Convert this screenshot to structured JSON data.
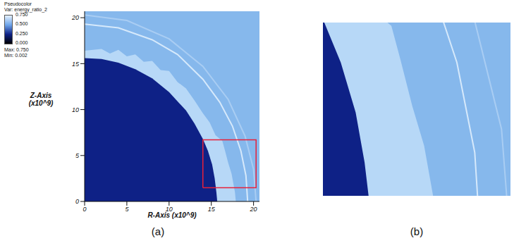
{
  "chart_data": [
    {
      "type": "area",
      "caption": "(a)",
      "x_label": "R-Axis (x10^9)",
      "y_label": "Z-Axis (x10^9)",
      "xlim": [
        0,
        20.7
      ],
      "ylim": [
        0,
        20.7
      ],
      "xticks": [
        0,
        5,
        10,
        15,
        20
      ],
      "yticks": [
        0,
        5,
        10,
        15,
        20
      ],
      "colorbar": {
        "title": "Pseudocolor",
        "variable": "Var: energy_ratio_2",
        "range": [
          0,
          0.75
        ],
        "ticks": [
          {
            "value": 0.75,
            "label": "0.750"
          },
          {
            "value": 0.5,
            "label": "0.500"
          },
          {
            "value": 0.25,
            "label": "0.250"
          },
          {
            "value": 0,
            "label": "0.000"
          }
        ],
        "colors": [
          "#e6f2ff",
          "#6fa6ea",
          "#0e2186",
          "#000000"
        ],
        "max_label": "Max: 0.750",
        "min_label": "Min: 0.002"
      },
      "series": [
        {
          "type": "area",
          "color": "#b7d8f7",
          "x": [
            0,
            2,
            3,
            4,
            5,
            6,
            7,
            8,
            9,
            10,
            11,
            12,
            13,
            14,
            14.8,
            15.5,
            16.3,
            16.6,
            17.0,
            17.4,
            17.6,
            17.8,
            17.9
          ],
          "values": [
            16.4,
            16.6,
            16.1,
            16.5,
            15.8,
            16.0,
            15.2,
            15.3,
            14.3,
            14.2,
            13.0,
            12.3,
            11.0,
            9.6,
            8.6,
            7.2,
            6.6,
            5.6,
            4.2,
            3.0,
            2.0,
            1.0,
            0
          ]
        },
        {
          "type": "area",
          "color": "#0e2186",
          "x": [
            0,
            2,
            4,
            6,
            8,
            10,
            12,
            13,
            14,
            14.6,
            15.1,
            15.4,
            15.6,
            15.7
          ],
          "values": [
            15.6,
            15.5,
            15.1,
            14.4,
            13.4,
            11.9,
            9.9,
            8.5,
            6.8,
            5.5,
            4.0,
            2.5,
            1.0,
            0
          ]
        },
        {
          "type": "line",
          "color": "#d6e9fb",
          "x": [
            0,
            4,
            8,
            11,
            14,
            16,
            17.5,
            18.5,
            19.1,
            19.3
          ],
          "values": [
            19.3,
            18.9,
            17.6,
            16.0,
            13.3,
            10.8,
            8.2,
            5.5,
            2.8,
            0
          ]
        },
        {
          "type": "line",
          "color": "#a9cdf3",
          "x": [
            0,
            5,
            10,
            14,
            17,
            19,
            20,
            20.3
          ],
          "values": [
            20.3,
            19.7,
            17.7,
            14.7,
            11.1,
            7.1,
            3.5,
            0
          ]
        }
      ]
    },
    {
      "type": "area",
      "caption": "(b)",
      "xlim": [
        14,
        20.3
      ],
      "ylim": [
        1.5,
        6.7
      ],
      "tick_labels": false,
      "color": "#e8203a"
    }
  ]
}
